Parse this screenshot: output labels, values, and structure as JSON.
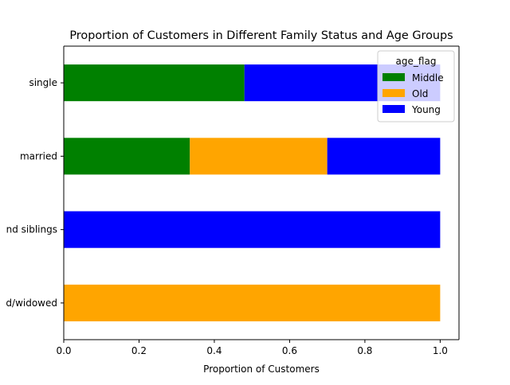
{
  "chart_data": {
    "type": "bar",
    "orientation": "horizontal",
    "stacked": true,
    "title": "Proportion of Customers in Different Family Status and Age Groups",
    "xlabel": "Proportion of Customers",
    "ylabel": "",
    "xlim": [
      0,
      1.05
    ],
    "xticks": [
      "0.0",
      "0.2",
      "0.4",
      "0.6",
      "0.8",
      "1.0"
    ],
    "xtick_values": [
      0,
      0.2,
      0.4,
      0.6,
      0.8,
      1.0
    ],
    "grid": false,
    "categories": [
      "single",
      "married",
      "nd siblings",
      "d/widowed"
    ],
    "series": [
      {
        "name": "Middle",
        "color": "#008000",
        "values": [
          0.48,
          0.335,
          0,
          0
        ]
      },
      {
        "name": "Old",
        "color": "#ffa500",
        "values": [
          0,
          0.365,
          0,
          1.0
        ]
      },
      {
        "name": "Young",
        "color": "#0000ff",
        "values": [
          0.52,
          0.3,
          1.0,
          0
        ]
      }
    ],
    "legend": {
      "title": "age_flag",
      "placement": "top-right",
      "entries": [
        "Middle",
        "Old",
        "Young"
      ]
    }
  }
}
